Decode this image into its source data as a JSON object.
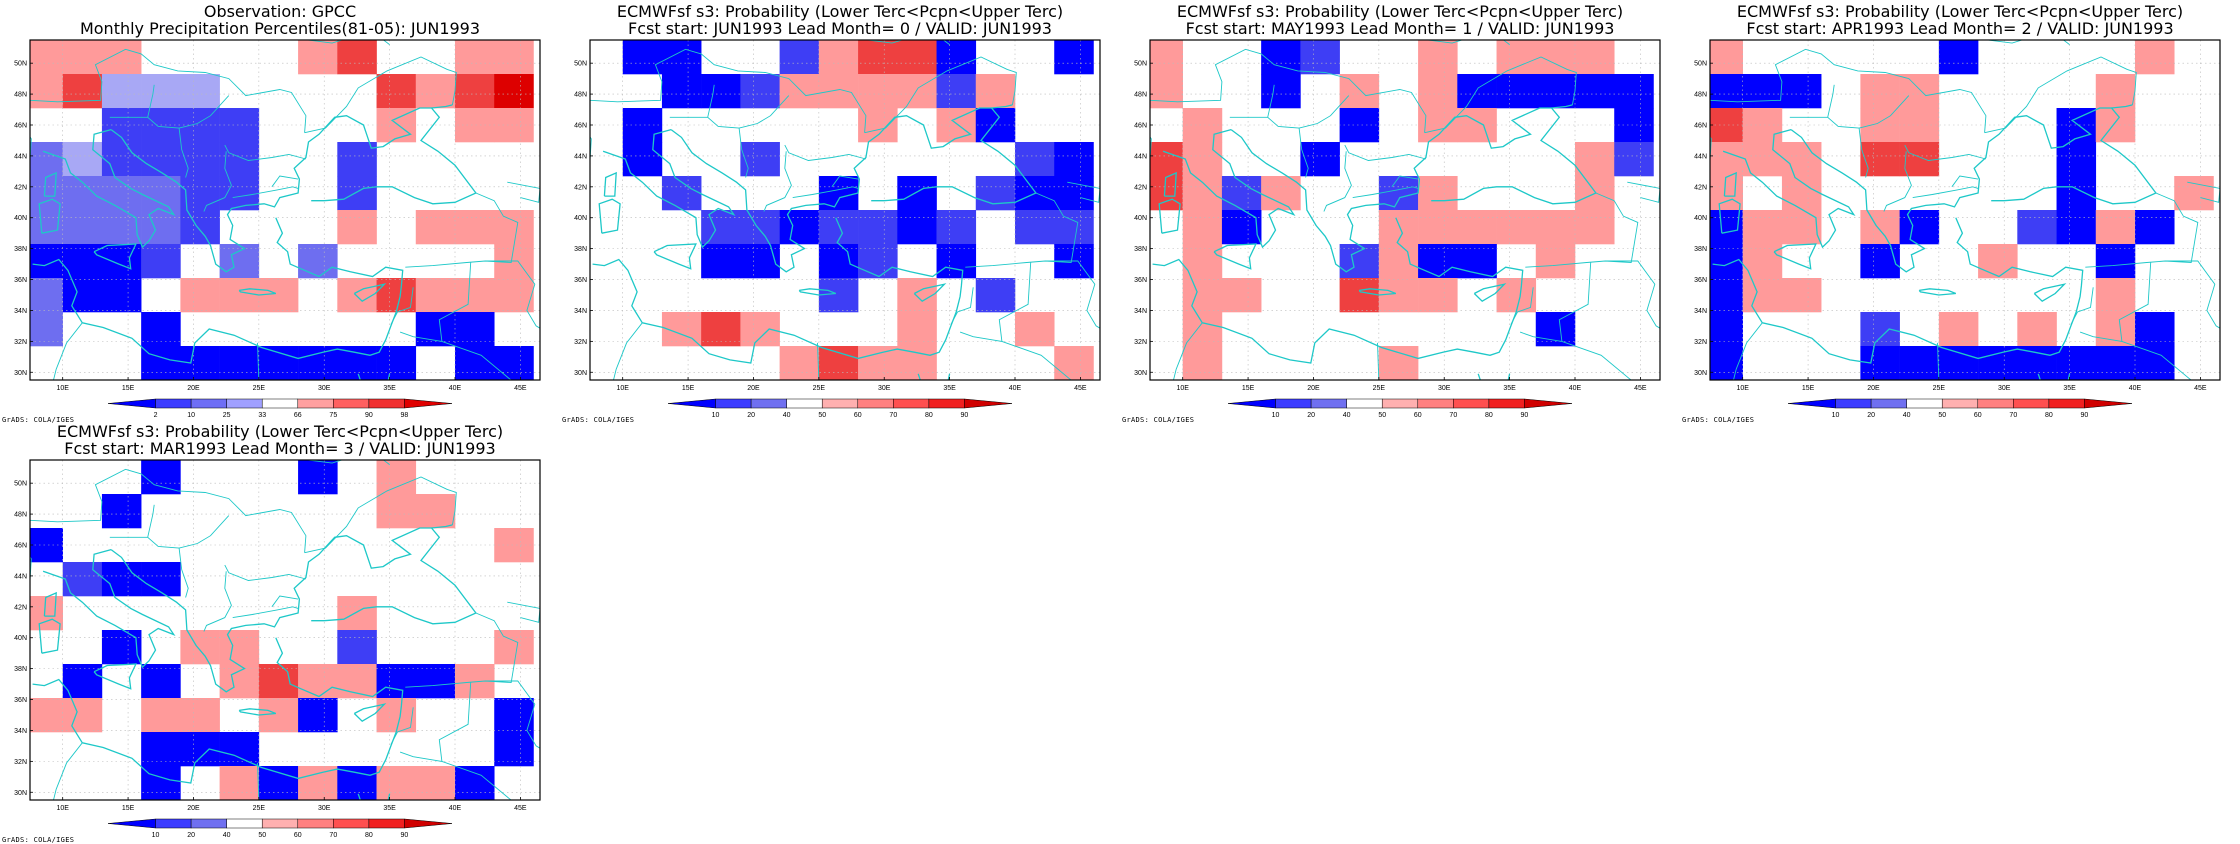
{
  "panels": [
    {
      "title1": "Observation: GPCC",
      "title2": "Monthly Precipitation Percentiles(81-05): JUN1993",
      "colorbar": {
        "kind": "obs",
        "labels": [
          "2",
          "10",
          "25",
          "33",
          "66",
          "75",
          "90",
          "98"
        ]
      },
      "credit": "GrADS: COLA/IGES",
      "grid": [
        "GGG....GH..GG",
        "GHEEE....HGHR",
        "..BBBB...G.GG",
        "CEBBBB..B....",
        "CCCCBB..B....",
        "CCCCB...G.GGG",
        "AAAB.C.C....G",
        "CAA.GGG.GHGGG",
        "C..A......AA.",
        "...AAAAAAA.AA"
      ]
    },
    {
      "title1": "ECMWFsf s3: Probability (Lower Terc<Pcpn<Upper Terc)",
      "title2": "Fcst start: JUN1993   Lead Month= 0 / VALID: JUN1993",
      "colorbar": {
        "kind": "prob",
        "labels": [
          "10",
          "20",
          "40",
          "50",
          "60",
          "70",
          "80",
          "90"
        ]
      },
      "credit": "GrADS: COLA/IGES",
      "grid": [
        ".AA..BGHHA..A",
        "..AABGGGGBG..",
        ".A.....G.GA..",
        ".A..B......BA",
        "..B...A.A.BAA",
        "...BBABBAB.BB",
        "...AA.AB.A..A",
        "......B.G.B..",
        "..GHG...G..G.",
        ".....GHGG...G"
      ]
    },
    {
      "title1": "ECMWFsf s3: Probability (Lower Terc<Pcpn<Upper Terc)",
      "title2": "Fcst start: MAY1993   Lead Month= 1 / VALID: JUN1993",
      "colorbar": {
        "kind": "prob",
        "labels": [
          "10",
          "20",
          "40",
          "50",
          "60",
          "70",
          "80",
          "90"
        ]
      },
      "credit": "GrADS: COLA/IGES",
      "grid": [
        "G..AB..G.GGG.",
        "G..A.G.GAAAAA",
        ".G...A.GG...A",
        "HG..A......GB",
        "HGBG..BG...G.",
        ".GA...GGGGGG.",
        ".G...BGAA.G..",
        ".GG..HGG.G...",
        ".G........A..",
        ".G....G......"
      ]
    },
    {
      "title1": "ECMWFsf s3: Probability (Lower Terc<Pcpn<Upper Terc)",
      "title2": "Fcst start: APR1993   Lead Month= 2 / VALID: JUN1993",
      "colorbar": {
        "kind": "prob",
        "labels": [
          "10",
          "20",
          "40",
          "50",
          "60",
          "70",
          "80",
          "90"
        ]
      },
      "credit": "GrADS: COLA/IGES",
      "grid": [
        "G.....A....G.",
        "AAA.GG....G..",
        "HG..GG...AG..",
        "GGG.HH...A...",
        "G.G......A..G",
        "AGG.GA..BAGA.",
        "AG..A..G..A..",
        "AGG.......G..",
        "A...B.G.G.GA.",
        "A...AAAAAAAA."
      ]
    },
    {
      "title1": "ECMWFsf s3: Probability (Lower Terc<Pcpn<Upper Terc)",
      "title2": "Fcst start: MAR1993   Lead Month= 3 / VALID: JUN1993",
      "colorbar": {
        "kind": "prob",
        "labels": [
          "10",
          "20",
          "40",
          "50",
          "60",
          "70",
          "80",
          "90"
        ]
      },
      "credit": "GrADS: COLA/IGES",
      "grid": [
        "...A...A.G...",
        "..A......GG..",
        "A...........G",
        ".BAA.........",
        "G.......G....",
        "..A.GG..B...G",
        ".A.A.GHGGAAG.",
        "GG.GG.GA.G..A",
        "...AAA......A",
        "...A.GAGAGGA."
      ]
    }
  ],
  "map": {
    "lon_ticks": [
      "10E",
      "15E",
      "20E",
      "25E",
      "30E",
      "35E",
      "40E",
      "45E"
    ],
    "lat_ticks": [
      "30N",
      "32N",
      "34N",
      "36N",
      "38N",
      "40N",
      "42N",
      "44N",
      "46N",
      "48N",
      "50N"
    ],
    "palette": {
      "A": "#0000ff",
      "B": "#3e3ef5",
      "C": "#6e6ef0",
      "E": "#a8a8f5",
      "G": "#ff9a9a",
      "H": "#ee4040",
      "R": "#dd0000"
    },
    "coast_color": "#1ec8c8",
    "grid_line_color": "#bbbbbb",
    "obs_bar_colors": [
      "#0000ff",
      "#3c3cff",
      "#6e6ef5",
      "#a0a0ff",
      "#ffffff",
      "#ffa0a0",
      "#ff6060",
      "#f03030",
      "#e00000"
    ],
    "prob_bar_colors": [
      "#0000ff",
      "#3c3cff",
      "#7070f0",
      "#ffffff",
      "#ffb0b0",
      "#ff8080",
      "#ff5050",
      "#f02020",
      "#d00000"
    ]
  }
}
